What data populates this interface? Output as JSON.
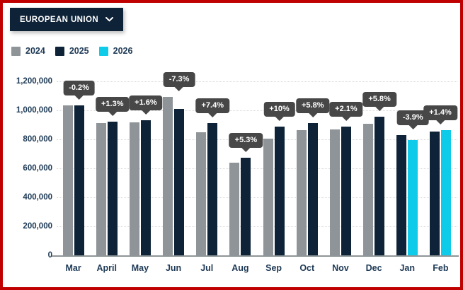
{
  "frame": {
    "border_color": "#c00000"
  },
  "filter": {
    "label": "EUROPEAN UNION",
    "chevron_icon": "chevron-down"
  },
  "chart_data": {
    "type": "bar",
    "title": "",
    "categories": [
      "Mar",
      "April",
      "May",
      "Jun",
      "Jul",
      "Aug",
      "Sep",
      "Oct",
      "Nov",
      "Dec",
      "Jan",
      "Feb"
    ],
    "series": [
      {
        "name": "2024",
        "color": "#8e9497",
        "values": [
          1035000,
          910000,
          916000,
          1092000,
          848000,
          638000,
          806000,
          864000,
          869000,
          906000,
          null,
          null
        ]
      },
      {
        "name": "2025",
        "color": "#0e2338",
        "values": [
          1033000,
          922000,
          931000,
          1012000,
          911000,
          672000,
          886000,
          914000,
          887000,
          958000,
          830000,
          853000
        ]
      },
      {
        "name": "2026",
        "color": "#0fcbea",
        "values": [
          null,
          null,
          null,
          null,
          null,
          null,
          null,
          null,
          null,
          null,
          797000,
          865000
        ]
      }
    ],
    "labels": [
      "-0.2%",
      "+1.3%",
      "+1.6%",
      "-7.3%",
      "+7.4%",
      "+5.3%",
      "+10%",
      "+5.8%",
      "+2.1%",
      "+5.8%",
      "-3.9%",
      "+1.4%"
    ],
    "y_ticks": [
      "0",
      "200,000",
      "400,000",
      "600,000",
      "800,000",
      "1,000,000",
      "1,200,000"
    ],
    "ylim": [
      0,
      1200000
    ],
    "xlabel": "",
    "ylabel": "",
    "grid": "dotted-horizontal",
    "legend_position": "top-left",
    "colors": {
      "callout_bg": "#474747",
      "callout_text": "#ffffff",
      "axis_text": "#1e3a56",
      "axis_line": "#8f9598"
    }
  }
}
